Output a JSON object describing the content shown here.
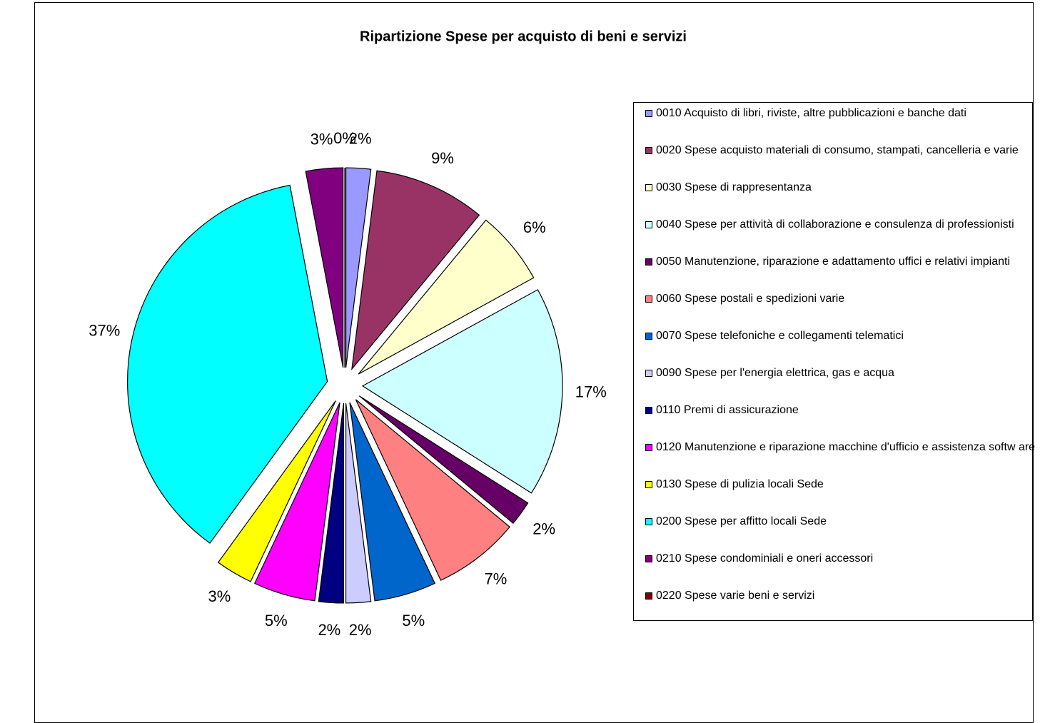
{
  "chart_data": {
    "type": "pie",
    "title": "Ripartizione Spese per acquisto di beni e servizi",
    "categories": [
      "0010 Acquisto di libri, riviste, altre pubblicazioni e banche dati",
      "0020 Spese acquisto materiali di consumo, stampati, cancelleria e varie",
      "0030 Spese di rappresentanza",
      "0040 Spese per attività di collaborazione e consulenza di professionisti",
      "0050 Manutenzione, riparazione e adattamento uffici e relativi impianti",
      "0060 Spese postali e spedizioni varie",
      "0070 Spese telefoniche e collegamenti telematici",
      "0090 Spese per l'energia elettrica, gas e acqua",
      "0110 Premi di assicurazione",
      "0120 Manutenzione e riparazione macchine d'ufficio e assistenza softw are",
      "0130 Spese di pulizia locali Sede",
      "0200 Spese per affitto locali Sede",
      "0210 Spese condominiali e oneri accessori",
      "0220 Spese varie beni e servizi"
    ],
    "values": [
      2,
      9,
      6,
      17,
      2,
      7,
      5,
      2,
      2,
      5,
      3,
      37,
      3,
      0
    ],
    "value_labels": [
      "2%",
      "9%",
      "6%",
      "17%",
      "2%",
      "7%",
      "5%",
      "2%",
      "2%",
      "5%",
      "3%",
      "37%",
      "3%",
      "0%"
    ],
    "colors": [
      "#9999ff",
      "#993366",
      "#ffffcc",
      "#ccffff",
      "#660066",
      "#ff8080",
      "#0066cc",
      "#ccccff",
      "#000080",
      "#ff00ff",
      "#ffff00",
      "#00ffff",
      "#800080",
      "#800000"
    ],
    "exploded": true,
    "legend": "right"
  }
}
